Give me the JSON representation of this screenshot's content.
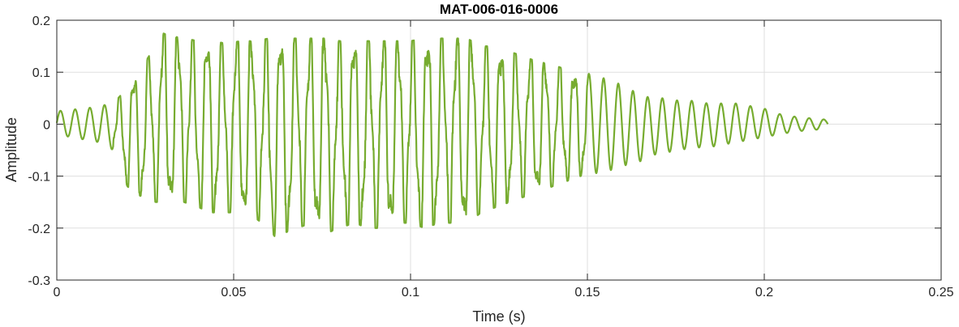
{
  "chart_data": {
    "type": "line",
    "title": "MAT-006-016-0006",
    "xlabel": "Time (s)",
    "ylabel": "Amplitude",
    "xlim": [
      0,
      0.25
    ],
    "ylim": [
      -0.3,
      0.2
    ],
    "x_ticks": [
      0,
      0.05,
      0.1,
      0.15,
      0.2,
      0.25
    ],
    "x_tick_labels": [
      "0",
      "0.05",
      "0.1",
      "0.15",
      "0.2",
      "0.25"
    ],
    "y_ticks": [
      -0.3,
      -0.2,
      -0.1,
      0,
      0.1,
      0.2
    ],
    "y_tick_labels": [
      "-0.3",
      "-0.2",
      "-0.1",
      "0",
      "0.1",
      "0.2"
    ],
    "grid": true,
    "legend": "none",
    "series": [
      {
        "color": "#77ac30",
        "x": [
          0,
          0.004,
          0.008,
          0.012,
          0.016,
          0.018,
          0.02,
          0.022,
          0.024,
          0.026,
          0.028,
          0.03,
          0.032,
          0.036,
          0.04,
          0.044,
          0.048,
          0.052,
          0.056,
          0.06,
          0.062,
          0.064,
          0.068,
          0.072,
          0.076,
          0.08,
          0.084,
          0.088,
          0.092,
          0.096,
          0.1,
          0.104,
          0.108,
          0.112,
          0.116,
          0.12,
          0.124,
          0.128,
          0.132,
          0.136,
          0.14,
          0.144,
          0.148,
          0.152,
          0.156,
          0.16,
          0.164,
          0.168,
          0.172,
          0.176,
          0.18,
          0.184,
          0.188,
          0.192,
          0.196,
          0.2,
          0.204,
          0.208,
          0.212,
          0.216,
          0.218
        ],
        "upper": [
          0.025,
          0.028,
          0.03,
          0.035,
          0.04,
          0.055,
          0.085,
          0.09,
          0.11,
          0.13,
          0.16,
          0.175,
          0.17,
          0.165,
          0.16,
          0.16,
          0.155,
          0.16,
          0.16,
          0.165,
          0.165,
          0.165,
          0.165,
          0.165,
          0.165,
          0.16,
          0.16,
          0.16,
          0.16,
          0.16,
          0.16,
          0.165,
          0.165,
          0.165,
          0.165,
          0.15,
          0.15,
          0.14,
          0.13,
          0.12,
          0.115,
          0.105,
          0.1,
          0.095,
          0.085,
          0.075,
          0.06,
          0.05,
          0.05,
          0.045,
          0.045,
          0.04,
          0.04,
          0.04,
          0.035,
          0.03,
          0.02,
          0.015,
          0.012,
          0.01,
          0.008
        ],
        "lower": [
          -0.02,
          -0.025,
          -0.03,
          -0.035,
          -0.05,
          -0.09,
          -0.12,
          -0.13,
          -0.14,
          -0.145,
          -0.15,
          -0.15,
          -0.15,
          -0.15,
          -0.16,
          -0.17,
          -0.17,
          -0.17,
          -0.18,
          -0.2,
          -0.22,
          -0.21,
          -0.2,
          -0.19,
          -0.21,
          -0.2,
          -0.19,
          -0.2,
          -0.2,
          -0.19,
          -0.19,
          -0.2,
          -0.19,
          -0.19,
          -0.19,
          -0.17,
          -0.16,
          -0.15,
          -0.14,
          -0.13,
          -0.12,
          -0.11,
          -0.1,
          -0.095,
          -0.09,
          -0.08,
          -0.075,
          -0.06,
          -0.055,
          -0.05,
          -0.045,
          -0.045,
          -0.04,
          -0.035,
          -0.03,
          -0.025,
          -0.02,
          -0.015,
          -0.012,
          -0.01,
          -0.005
        ]
      }
    ]
  }
}
